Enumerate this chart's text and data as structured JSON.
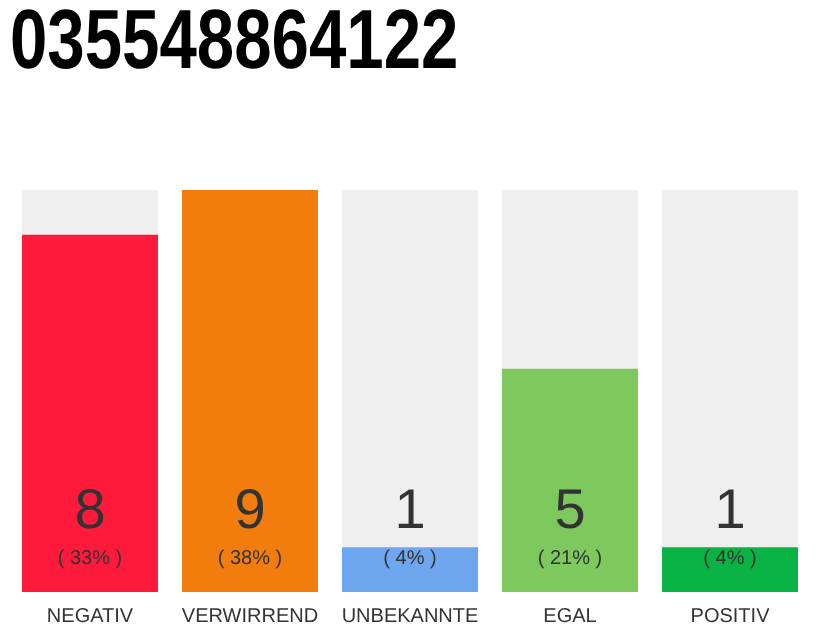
{
  "chart_data": {
    "type": "bar",
    "title": "035548864122",
    "categories": [
      "NEGATIV",
      "VERWIRREND",
      "UNBEKANNTE",
      "EGAL",
      "POSITIV"
    ],
    "values": [
      8,
      9,
      1,
      5,
      1
    ],
    "colors": [
      "#ff1a3c",
      "#f27c0c",
      "#6ea6f0",
      "#7dc95e",
      "#0ab444"
    ],
    "data_labels": true,
    "grid": false,
    "legend": false,
    "tick_labels": "x",
    "annotations": [
      "( 33% )",
      "( 38% )",
      "( 4% )",
      "( 21% )",
      "( 4% )"
    ]
  }
}
